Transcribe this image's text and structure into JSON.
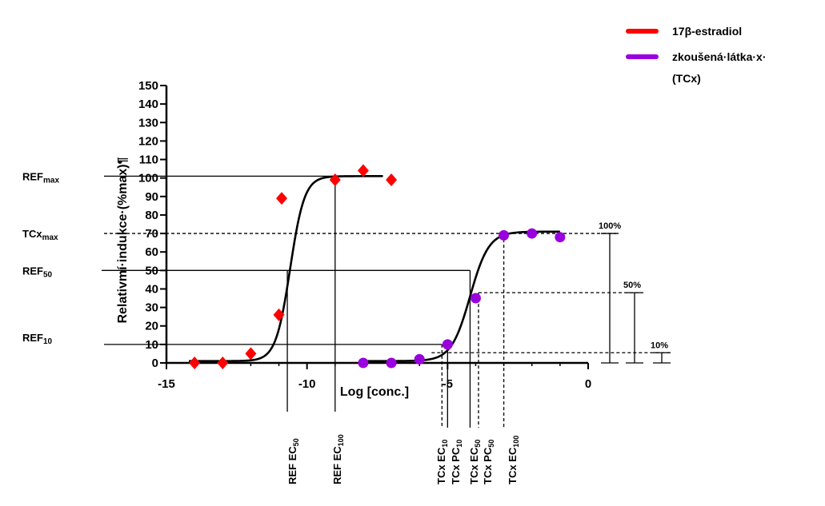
{
  "chart_data": {
    "type": "scatter",
    "title": "",
    "xlabel": "Log [conc.]",
    "ylabel": "Relativmí·indukce·(%max)¶",
    "xlim": [
      -15,
      0
    ],
    "ylim": [
      0,
      150
    ],
    "x_ticks": [
      -15,
      -10,
      -5,
      0
    ],
    "x_tick_labels": [
      "-15",
      "-10",
      "-5",
      "0"
    ],
    "y_ticks": [
      0,
      10,
      20,
      30,
      40,
      50,
      60,
      70,
      80,
      90,
      100,
      110,
      120,
      130,
      140,
      150
    ],
    "series": [
      {
        "name": "17β-estradiol",
        "color": "#ff0000",
        "marker": "diamond",
        "points": [
          [
            -14,
            0
          ],
          [
            -13,
            0
          ],
          [
            -12,
            5
          ],
          [
            -11,
            26
          ],
          [
            -10.9,
            89
          ],
          [
            -9,
            99
          ],
          [
            -8,
            104
          ],
          [
            -7,
            99
          ]
        ],
        "fit": {
          "bottom": 1,
          "top": 101,
          "logEC50": -10.6,
          "hill": 1.7,
          "x_range": [
            -14.2,
            -7.3
          ]
        }
      },
      {
        "name": "zkoušená·látka·x·(TCx)",
        "color": "#9900dd",
        "marker": "circle",
        "points": [
          [
            -8,
            0
          ],
          [
            -7,
            0
          ],
          [
            -6,
            2
          ],
          [
            -5,
            10
          ],
          [
            -4,
            35
          ],
          [
            -3,
            69
          ],
          [
            -2,
            70
          ],
          [
            -1,
            68
          ]
        ],
        "fit": {
          "bottom": 1,
          "top": 71,
          "logEC50": -4.2,
          "hill": 1.3,
          "x_range": [
            -8,
            -1
          ]
        }
      }
    ],
    "reference_lines": {
      "REF_max": 101,
      "TCx_max": 70,
      "REF_50": 50,
      "REF_10": 10,
      "TCx_50pct": 38,
      "TCx_10pct": 5.5
    },
    "vertical_markers": {
      "REF_EC50": -10.7,
      "REF_EC100": -9,
      "TCx_EC10": -5.2,
      "TCx_PC10": -5,
      "TCx_EC50": -4.2,
      "TCx_PC50": -3.9,
      "TCx_EC100": -3
    },
    "side_labels": [
      {
        "main": "REF",
        "sub": "max"
      },
      {
        "main": "TCx",
        "sub": "max"
      },
      {
        "main": "REF",
        "sub": "50"
      },
      {
        "main": "REF",
        "sub": "10"
      }
    ],
    "percent_labels": [
      "100%",
      "50%",
      "10%"
    ],
    "bottom_labels": [
      {
        "main": "REF EC",
        "sub": "50"
      },
      {
        "main": "REF EC",
        "sub": "100"
      },
      {
        "main": "TCx EC",
        "sub": "10"
      },
      {
        "main": "TCx PC",
        "sub": "10"
      },
      {
        "main": "TCx EC",
        "sub": "50"
      },
      {
        "main": "TCx PC",
        "sub": "50"
      },
      {
        "main": "TCx EC",
        "sub": "100"
      }
    ],
    "legend": {
      "position": "top-right",
      "entries": [
        {
          "label": "17β-estradiol",
          "color": "#ff0000"
        },
        {
          "label": "zkoušená·látka·x·",
          "label2": "(TCx)",
          "color": "#9900dd"
        }
      ]
    }
  }
}
